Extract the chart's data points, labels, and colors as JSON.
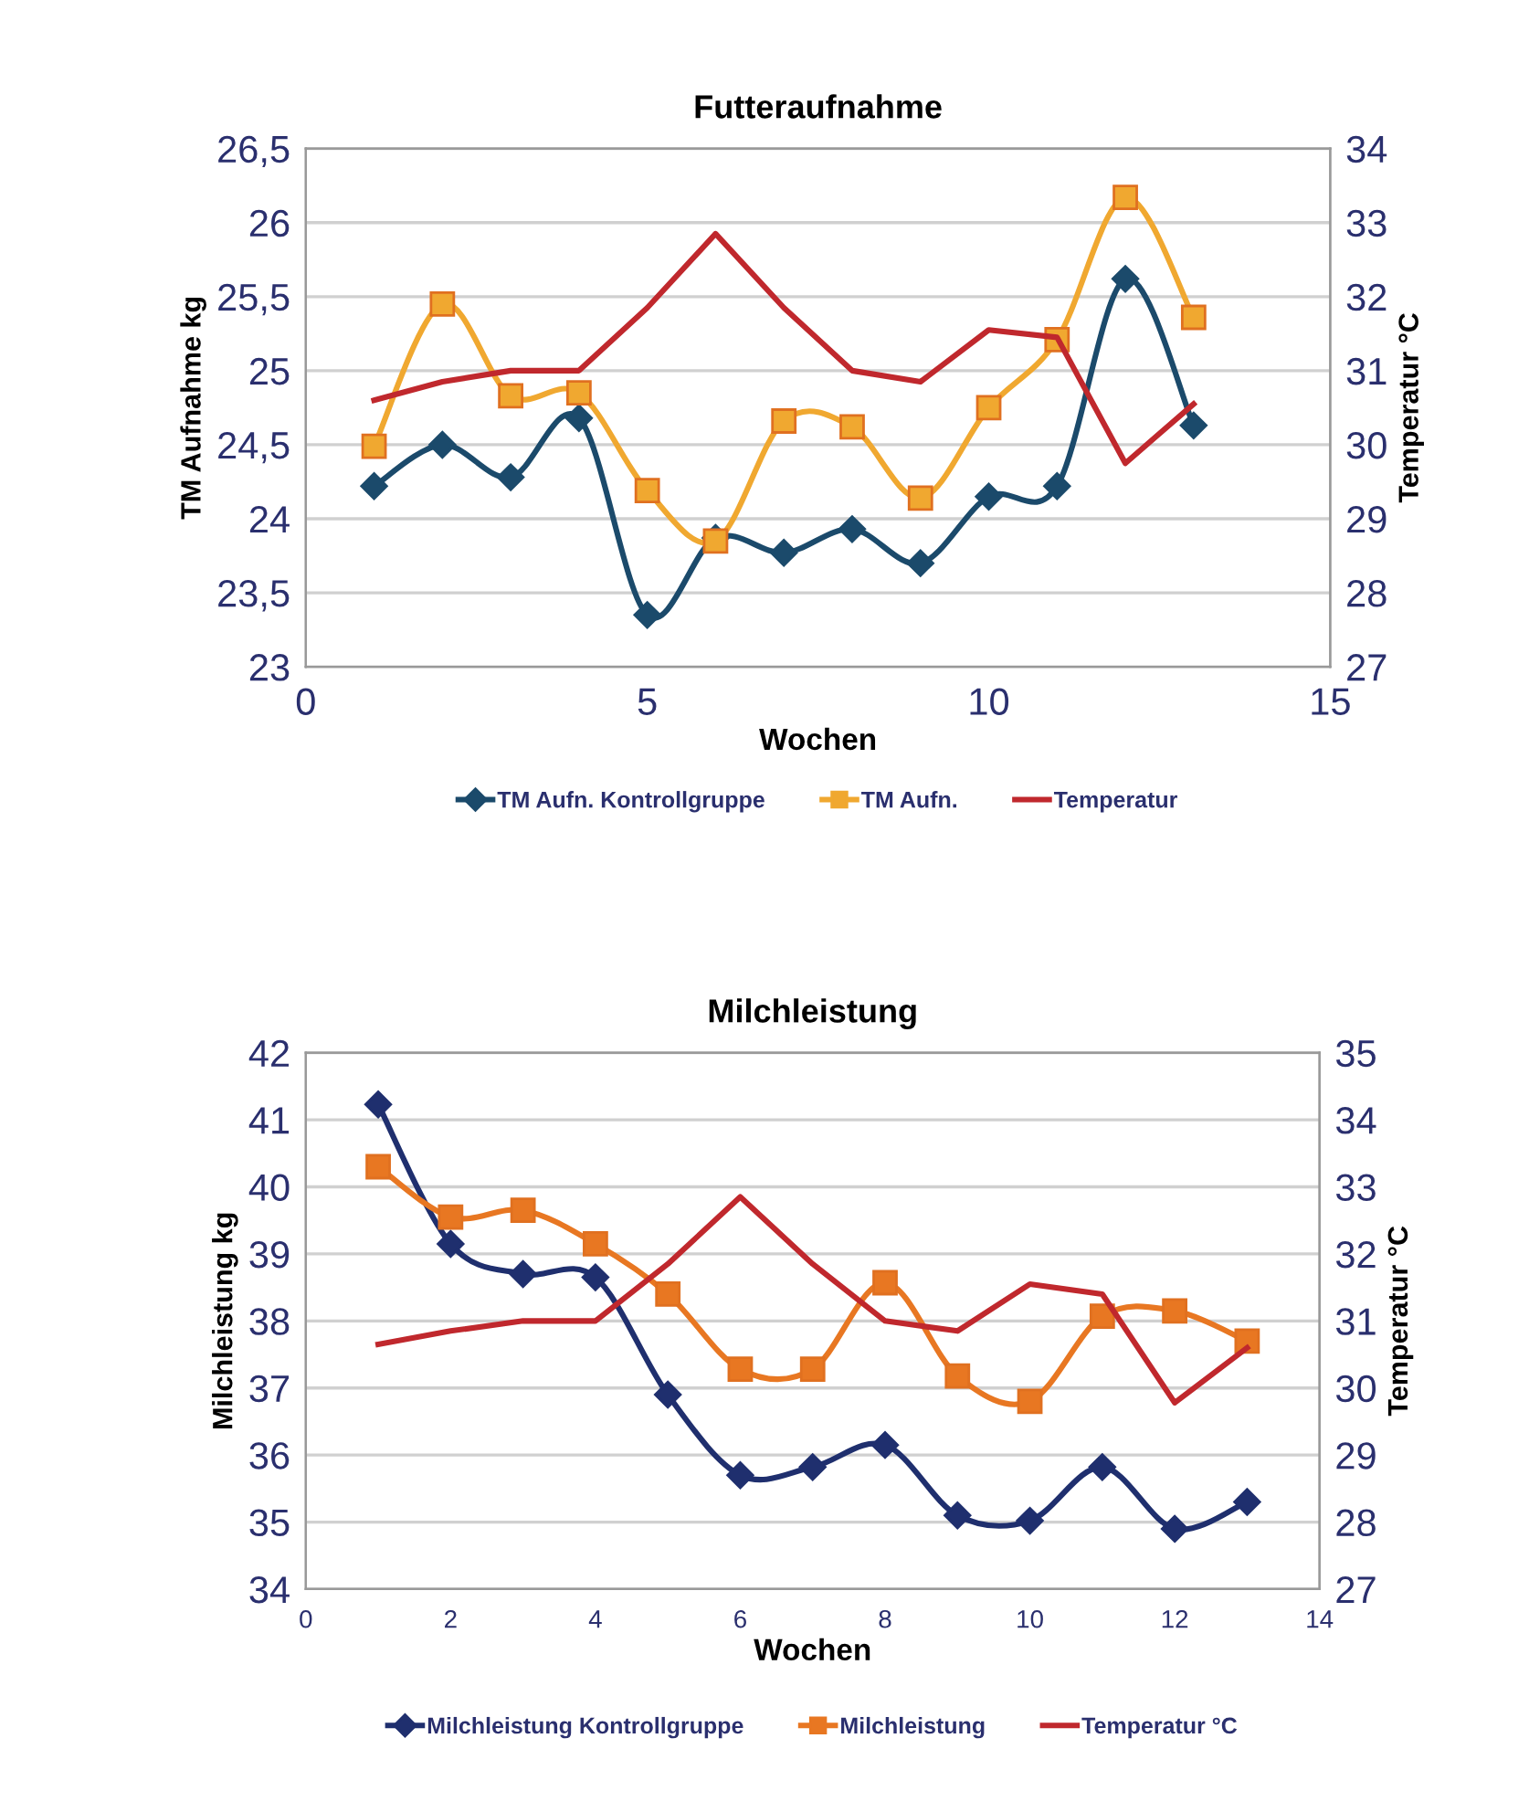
{
  "chart_data": [
    {
      "type": "line",
      "title": "Futteraufnahme",
      "xlabel": "Wochen",
      "ylabel": "TM Aufnahme kg",
      "y2label": "Temperatur °C",
      "grid": "y",
      "legend": "bottom",
      "line_style": "solid",
      "x": [
        1,
        2,
        3,
        4,
        5,
        6,
        7,
        8,
        9,
        10,
        11,
        12,
        13
      ],
      "xlim": [
        0,
        15
      ],
      "xticks": [
        0,
        5,
        10,
        15
      ],
      "ylim": [
        23,
        26.5
      ],
      "yticks": [
        23,
        {
          "value": 23.5,
          "label": "23,5"
        },
        24,
        {
          "value": 24.5,
          "label": "24,5"
        },
        25,
        {
          "value": 25.5,
          "label": "25,5"
        },
        26,
        {
          "value": 26.5,
          "label": "26,5"
        }
      ],
      "y2lim": [
        27,
        34
      ],
      "y2ticks": [
        27,
        28,
        29,
        30,
        31,
        32,
        33,
        34
      ],
      "series": [
        {
          "name": "TM Aufn. Kontrollgruppe",
          "color": "#1b4a6b",
          "marker": "diamond",
          "values": [
            24.22,
            24.5,
            24.28,
            24.68,
            23.35,
            23.87,
            23.77,
            23.93,
            23.7,
            24.15,
            24.22,
            25.62,
            24.63
          ]
        },
        {
          "name": "TM Aufn.",
          "color": "#f0a830",
          "marker": "square",
          "values": [
            24.49,
            25.45,
            24.83,
            24.85,
            24.19,
            23.85,
            24.66,
            24.62,
            24.14,
            24.75,
            25.21,
            26.17,
            25.36
          ]
        },
        {
          "name": "Temperatur",
          "color": "#c0282d",
          "marker": "none",
          "axis": "y2",
          "values": [
            30.6,
            30.85,
            31.0,
            31.0,
            31.85,
            32.85,
            31.85,
            31.0,
            30.85,
            31.55,
            31.45,
            29.75,
            30.55
          ]
        }
      ]
    },
    {
      "type": "line",
      "title": "Milchleistung",
      "xlabel": "Wochen",
      "ylabel": "Milchleistung kg",
      "y2label": "Temperatur °C",
      "grid": "y",
      "legend": "bottom",
      "line_style": "solid",
      "x": [
        1,
        2,
        3,
        4,
        5,
        6,
        7,
        8,
        9,
        10,
        11,
        12,
        13
      ],
      "xlim": [
        0,
        14
      ],
      "xticks": [
        0,
        2,
        4,
        6,
        8,
        10,
        12,
        14
      ],
      "ylim": [
        34,
        42
      ],
      "yticks": [
        34,
        35,
        36,
        37,
        38,
        39,
        40,
        41,
        42
      ],
      "y2lim": [
        27,
        35
      ],
      "y2ticks": [
        27,
        28,
        29,
        30,
        31,
        32,
        33,
        34,
        35
      ],
      "series": [
        {
          "name": "Milchleistung Kontrollgruppe",
          "color": "#1f2f6e",
          "marker": "diamond",
          "values": [
            41.23,
            39.15,
            38.7,
            38.65,
            36.9,
            35.7,
            35.82,
            36.15,
            35.1,
            35.02,
            35.82,
            34.9,
            35.3
          ]
        },
        {
          "name": "Milchleistung",
          "color": "#e87722",
          "marker": "square",
          "values": [
            40.3,
            39.55,
            39.65,
            39.15,
            38.4,
            37.28,
            37.28,
            38.57,
            37.18,
            36.8,
            38.07,
            38.15,
            37.7
          ]
        },
        {
          "name": "Temperatur °C",
          "color": "#c0282d",
          "marker": "none",
          "axis": "y2",
          "values": [
            30.65,
            30.85,
            31.0,
            31.0,
            31.85,
            32.85,
            31.85,
            31.0,
            30.85,
            31.55,
            31.4,
            29.78,
            30.6
          ]
        }
      ]
    }
  ]
}
